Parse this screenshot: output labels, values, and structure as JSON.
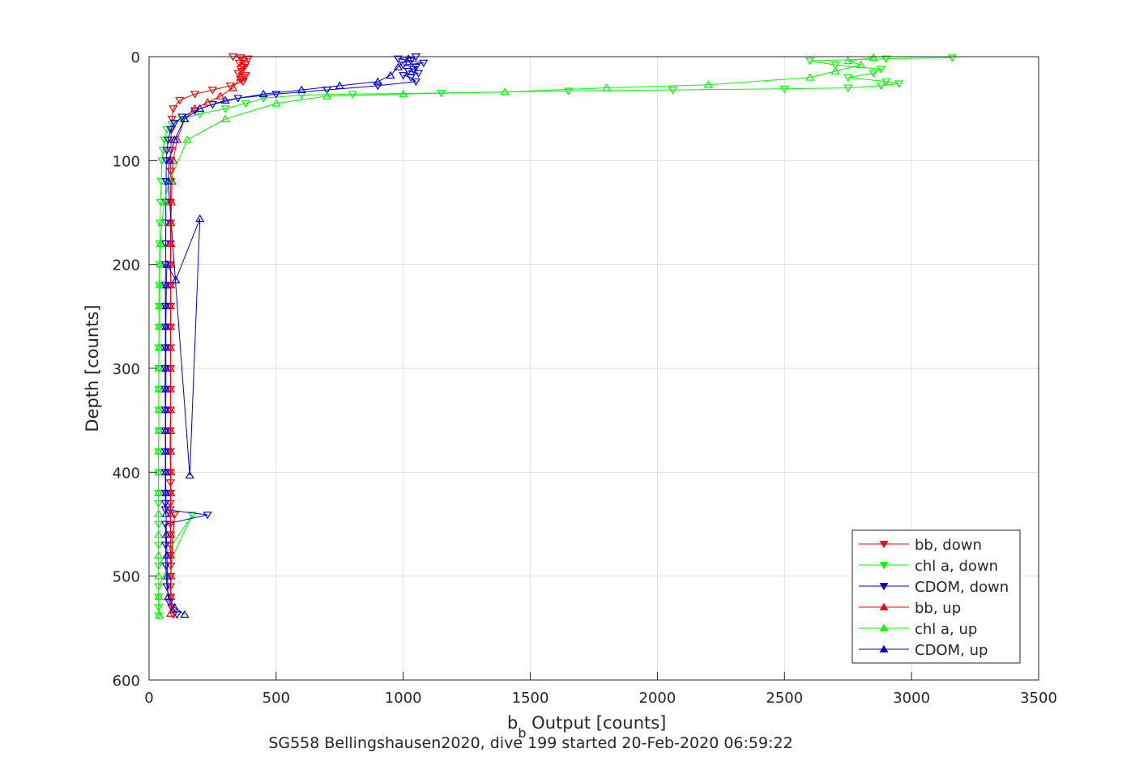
{
  "chart_data": {
    "type": "scatter",
    "title": "",
    "caption": "SG558 Bellingshausen2020, dive 199 started 20-Feb-2020 06:59:22",
    "xlabel": "b",
    "xlabel_subscript": "b",
    "xlabel_rest": " Output [counts]",
    "ylabel": "Depth [counts]",
    "xlim": [
      0,
      3500
    ],
    "ylim": [
      0,
      600
    ],
    "y_reversed": true,
    "grid": true,
    "legend_position": "bottom-right",
    "x_ticks": [
      0,
      500,
      1000,
      1500,
      2000,
      2500,
      3000,
      3500
    ],
    "y_ticks": [
      0,
      100,
      200,
      300,
      400,
      500,
      600
    ],
    "series": [
      {
        "name": "bb, down",
        "color": "#ff0000",
        "marker": "triangle-down",
        "x": [
          330,
          360,
          390,
          370,
          355,
          380,
          370,
          360,
          365,
          350,
          380,
          375,
          360,
          370,
          320,
          250,
          180,
          120,
          95,
          90,
          88,
          86,
          86,
          85,
          85,
          85,
          84,
          84,
          84,
          84,
          85,
          85,
          85,
          84,
          84,
          84,
          84,
          83,
          83,
          84,
          84,
          84,
          83,
          83,
          84,
          84,
          84,
          84,
          85,
          100,
          85,
          84,
          85,
          88,
          95
        ],
        "y": [
          0,
          1,
          2,
          4,
          6,
          8,
          10,
          12,
          14,
          16,
          18,
          20,
          22,
          24,
          28,
          32,
          36,
          42,
          50,
          60,
          70,
          80,
          90,
          100,
          110,
          120,
          140,
          160,
          180,
          200,
          220,
          240,
          260,
          280,
          300,
          320,
          340,
          360,
          380,
          400,
          410,
          420,
          430,
          436,
          450,
          460,
          470,
          480,
          490,
          441,
          500,
          510,
          520,
          530,
          537
        ]
      },
      {
        "name": "chl a, down",
        "color": "#00ff00",
        "marker": "triangle-down",
        "x": [
          3160,
          2900,
          2600,
          2700,
          2880,
          2850,
          2750,
          2900,
          2950,
          2880,
          2750,
          2500,
          2060,
          1650,
          1150,
          800,
          600,
          450,
          380,
          300,
          200,
          130,
          90,
          70,
          60,
          55,
          50,
          48,
          45,
          43,
          42,
          41,
          40,
          39,
          39,
          38,
          38,
          38,
          38,
          38,
          37,
          37,
          37,
          37,
          37,
          37,
          37,
          170,
          37,
          37,
          37,
          37
        ],
        "y": [
          1,
          2,
          4,
          8,
          12,
          16,
          20,
          24,
          26,
          28,
          30,
          31,
          32,
          33,
          35,
          36,
          37,
          40,
          45,
          50,
          55,
          60,
          65,
          70,
          80,
          90,
          100,
          120,
          140,
          160,
          180,
          200,
          220,
          240,
          260,
          280,
          300,
          320,
          340,
          360,
          380,
          400,
          420,
          430,
          450,
          470,
          490,
          441,
          510,
          520,
          530,
          538
        ]
      },
      {
        "name": "CDOM, down",
        "color": "#0000dd",
        "marker": "triangle-down",
        "x": [
          1050,
          980,
          1030,
          1080,
          1000,
          1050,
          1040,
          1020,
          1060,
          1000,
          1030,
          1050,
          900,
          700,
          500,
          350,
          250,
          180,
          130,
          100,
          85,
          75,
          70,
          68,
          67,
          66,
          66,
          65,
          65,
          64,
          64,
          64,
          64,
          63,
          63,
          64,
          64,
          64,
          64,
          64,
          64,
          64,
          230,
          64,
          65,
          66,
          70,
          80,
          110
        ],
        "y": [
          0,
          2,
          4,
          6,
          8,
          10,
          12,
          14,
          16,
          18,
          20,
          24,
          28,
          32,
          36,
          40,
          46,
          52,
          58,
          64,
          70,
          80,
          90,
          100,
          120,
          140,
          160,
          180,
          200,
          220,
          240,
          260,
          280,
          300,
          320,
          340,
          360,
          380,
          400,
          420,
          430,
          436,
          441,
          450,
          470,
          490,
          510,
          525,
          537
        ]
      },
      {
        "name": "bb, up",
        "color": "#ff0000",
        "marker": "triangle-up",
        "x": [
          85,
          86,
          86,
          85,
          85,
          85,
          86,
          86,
          85,
          85,
          84,
          84,
          84,
          84,
          84,
          84,
          85,
          85,
          86,
          86,
          88,
          90,
          95,
          110,
          140,
          180,
          230,
          280,
          330,
          360
        ],
        "y": [
          536,
          520,
          500,
          480,
          460,
          440,
          420,
          400,
          380,
          360,
          340,
          320,
          300,
          280,
          260,
          240,
          220,
          200,
          180,
          160,
          140,
          120,
          100,
          80,
          60,
          50,
          44,
          38,
          30,
          20
        ]
      },
      {
        "name": "chl a, up",
        "color": "#00ff00",
        "marker": "triangle-up",
        "x": [
          40,
          38,
          37,
          37,
          37,
          37,
          37,
          37,
          37,
          38,
          38,
          38,
          38,
          39,
          39,
          40,
          41,
          43,
          45,
          50,
          60,
          80,
          150,
          300,
          500,
          700,
          1000,
          1400,
          1800,
          2200,
          2600,
          2700,
          2800,
          2750,
          2850
        ],
        "y": [
          538,
          520,
          500,
          480,
          460,
          440,
          420,
          400,
          380,
          360,
          340,
          320,
          300,
          280,
          260,
          240,
          220,
          200,
          180,
          160,
          140,
          120,
          80,
          60,
          45,
          38,
          36,
          34,
          30,
          27,
          20,
          14,
          8,
          4,
          1
        ]
      },
      {
        "name": "CDOM, up",
        "color": "#0000dd",
        "marker": "triangle-up",
        "x": [
          140,
          100,
          75,
          72,
          70,
          68,
          67,
          66,
          65,
          65,
          65,
          65,
          66,
          66,
          66,
          66,
          67,
          68,
          70,
          105,
          200,
          160,
          75,
          80,
          100,
          140,
          200,
          300,
          450,
          600,
          750,
          900,
          950,
          980,
          1020
        ],
        "y": [
          537,
          530,
          520,
          500,
          480,
          460,
          440,
          420,
          400,
          380,
          360,
          340,
          320,
          300,
          280,
          260,
          240,
          220,
          200,
          215,
          156,
          403,
          120,
          100,
          80,
          60,
          50,
          42,
          36,
          32,
          28,
          24,
          18,
          10,
          2
        ]
      }
    ]
  }
}
